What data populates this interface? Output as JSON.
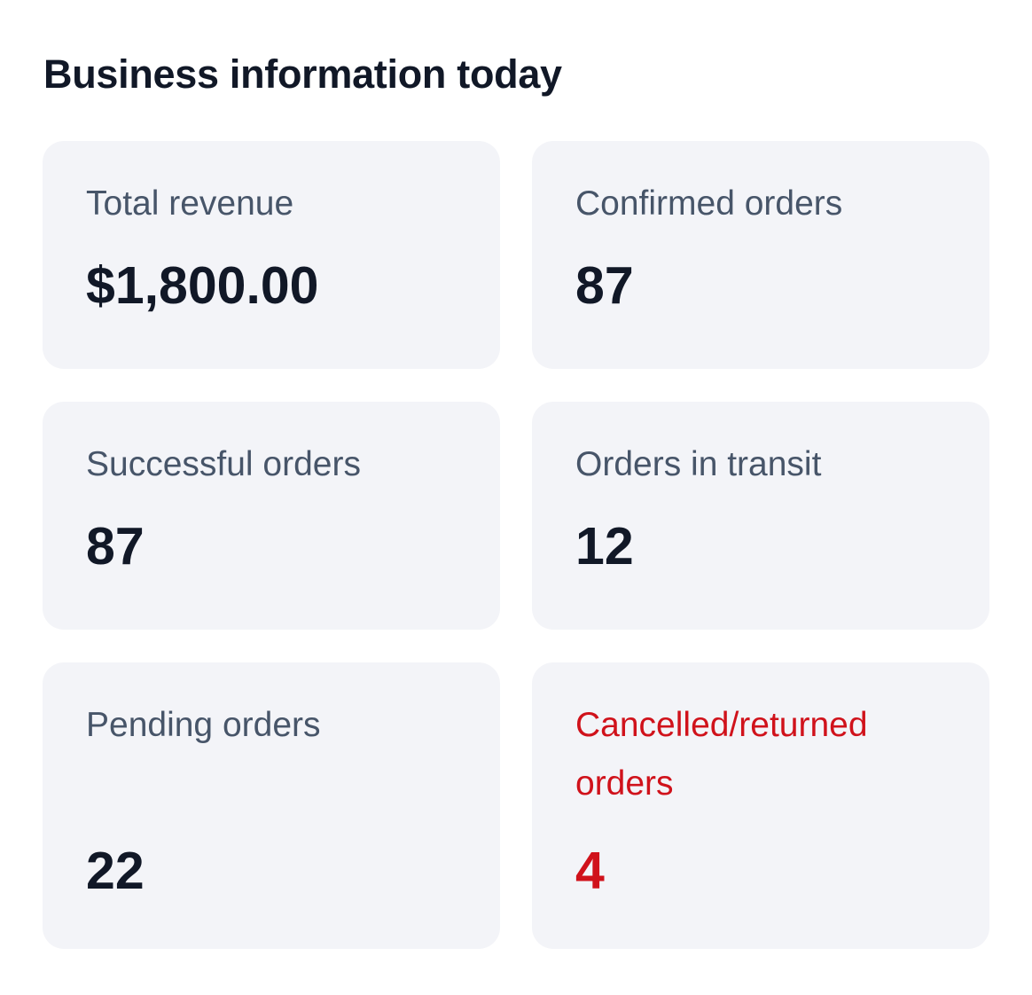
{
  "title": "Business information today",
  "colors": {
    "card_bg": "#f3f4f8",
    "label": "#475569",
    "value": "#111827",
    "danger": "#d0121b"
  },
  "cards": [
    {
      "label": "Total revenue",
      "value": "$1,800.00"
    },
    {
      "label": "Confirmed orders",
      "value": "87"
    },
    {
      "label": "Successful orders",
      "value": "87"
    },
    {
      "label": "Orders in transit",
      "value": "12"
    },
    {
      "label": "Pending orders",
      "value": "22"
    },
    {
      "label": "Cancelled/returned orders",
      "value": "4"
    }
  ]
}
